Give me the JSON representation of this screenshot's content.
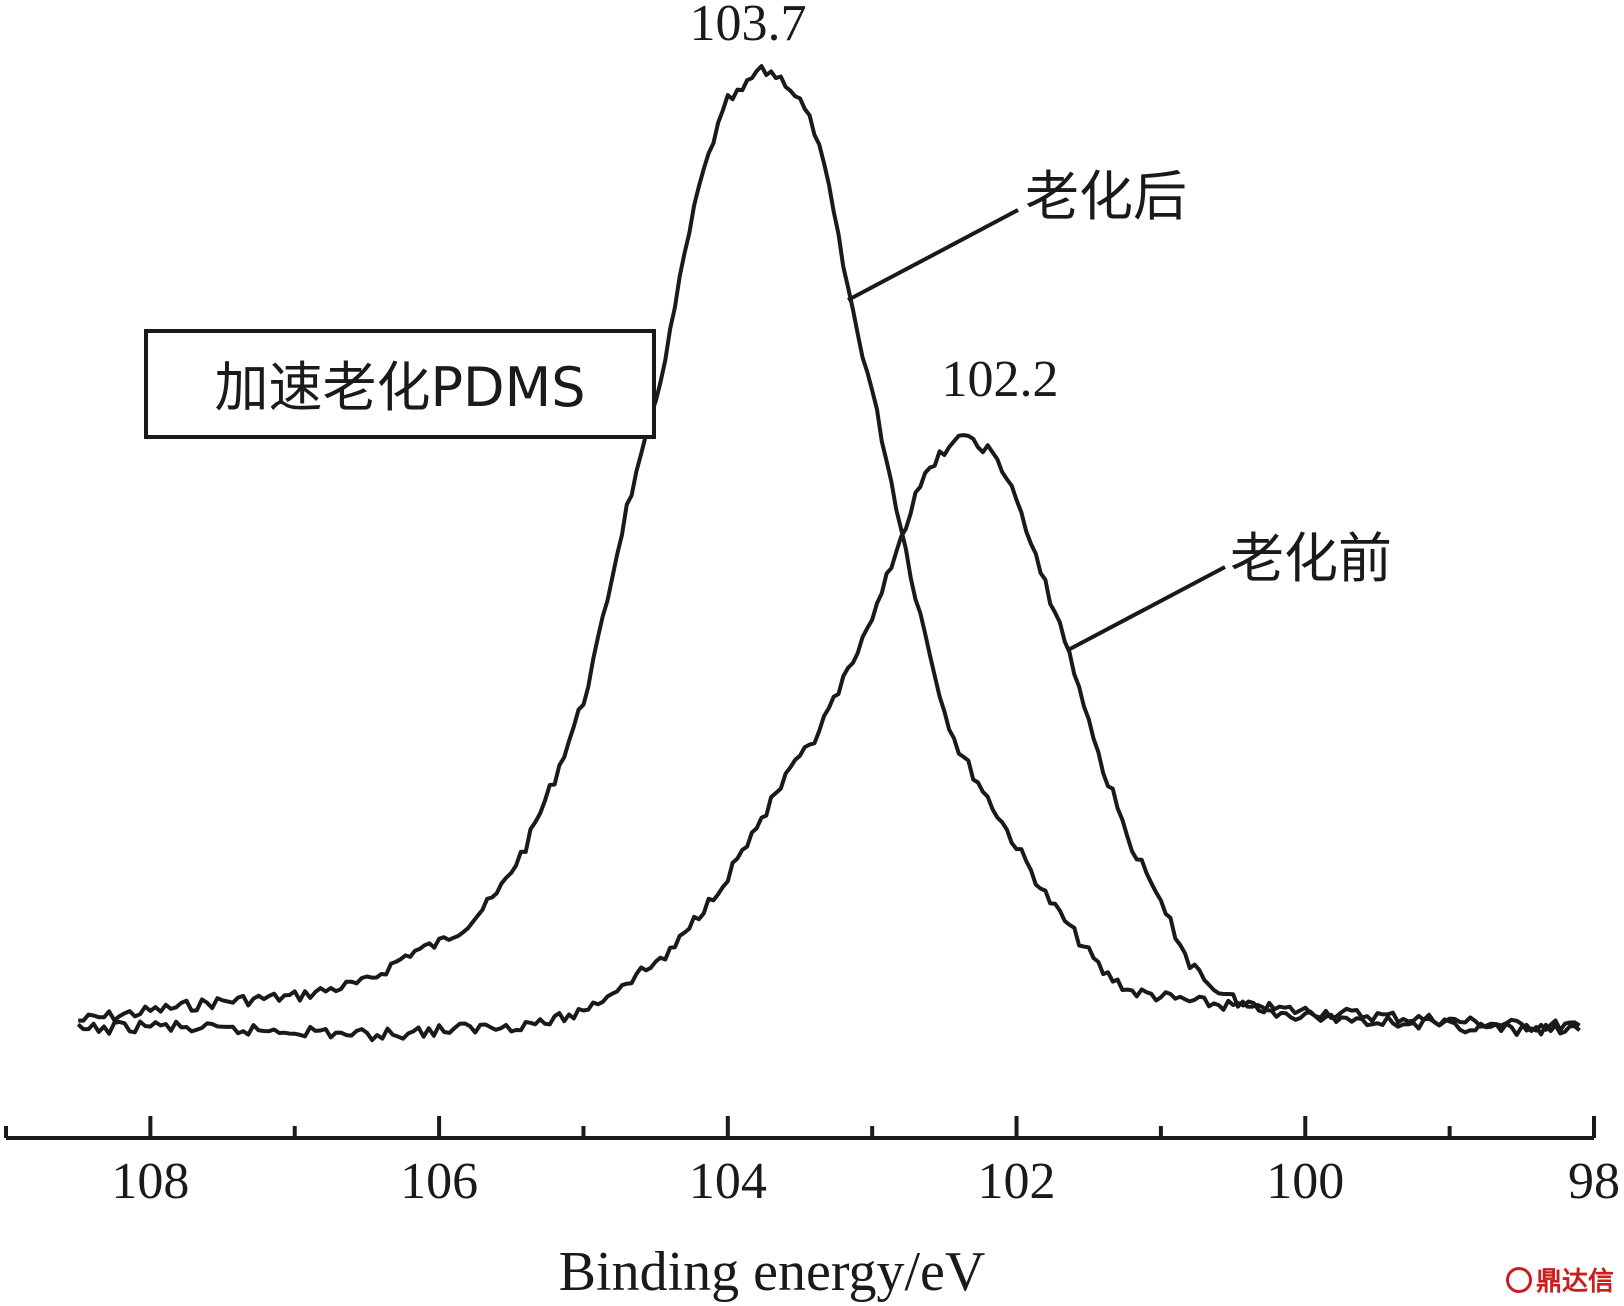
{
  "chart_data": {
    "type": "line",
    "title": "",
    "xlabel": "Binding energy/eV",
    "ylabel": "",
    "xlim": [
      109,
      98
    ],
    "x_reversed": true,
    "ylim": [
      0,
      1
    ],
    "x_ticks": [
      108,
      106,
      104,
      102,
      100,
      98
    ],
    "x_tick_labels": [
      "108",
      "106",
      "104",
      "102",
      "100",
      "98"
    ],
    "grid": false,
    "box_label": "加速老化PDMS",
    "series": [
      {
        "name": "老化后",
        "color": "#1a1a1a",
        "peak_label": "103.7",
        "points": [
          [
            108.5,
            0.02
          ],
          [
            108.0,
            0.03
          ],
          [
            107.5,
            0.04
          ],
          [
            107.0,
            0.045
          ],
          [
            106.5,
            0.06
          ],
          [
            106.2,
            0.09
          ],
          [
            106.0,
            0.1
          ],
          [
            105.8,
            0.12
          ],
          [
            105.6,
            0.15
          ],
          [
            105.4,
            0.2
          ],
          [
            105.2,
            0.27
          ],
          [
            105.0,
            0.35
          ],
          [
            104.9,
            0.41
          ],
          [
            104.8,
            0.48
          ],
          [
            104.7,
            0.55
          ],
          [
            104.6,
            0.6
          ],
          [
            104.5,
            0.66
          ],
          [
            104.4,
            0.73
          ],
          [
            104.3,
            0.81
          ],
          [
            104.2,
            0.88
          ],
          [
            104.1,
            0.93
          ],
          [
            104.0,
            0.97
          ],
          [
            103.9,
            0.98
          ],
          [
            103.8,
            1.0
          ],
          [
            103.7,
            1.0
          ],
          [
            103.6,
            0.99
          ],
          [
            103.5,
            0.97
          ],
          [
            103.4,
            0.94
          ],
          [
            103.3,
            0.88
          ],
          [
            103.2,
            0.8
          ],
          [
            103.1,
            0.73
          ],
          [
            103.0,
            0.67
          ],
          [
            102.9,
            0.6
          ],
          [
            102.8,
            0.53
          ],
          [
            102.7,
            0.46
          ],
          [
            102.6,
            0.4
          ],
          [
            102.5,
            0.34
          ],
          [
            102.4,
            0.3
          ],
          [
            102.2,
            0.25
          ],
          [
            102.0,
            0.2
          ],
          [
            101.8,
            0.15
          ],
          [
            101.6,
            0.11
          ],
          [
            101.4,
            0.07
          ],
          [
            101.2,
            0.05
          ],
          [
            101.0,
            0.045
          ],
          [
            100.8,
            0.04
          ],
          [
            100.5,
            0.035
          ],
          [
            100.0,
            0.03
          ],
          [
            99.5,
            0.025
          ],
          [
            99.0,
            0.02
          ],
          [
            98.5,
            0.015
          ],
          [
            98.1,
            0.015
          ]
        ]
      },
      {
        "name": "老化前",
        "color": "#1a1a1a",
        "peak_label": "102.2",
        "points": [
          [
            108.5,
            0.01
          ],
          [
            108.0,
            0.015
          ],
          [
            107.5,
            0.01
          ],
          [
            107.0,
            0.01
          ],
          [
            106.5,
            0.005
          ],
          [
            106.0,
            0.01
          ],
          [
            105.5,
            0.015
          ],
          [
            105.2,
            0.02
          ],
          [
            105.0,
            0.03
          ],
          [
            104.8,
            0.05
          ],
          [
            104.6,
            0.07
          ],
          [
            104.4,
            0.09
          ],
          [
            104.2,
            0.13
          ],
          [
            104.0,
            0.17
          ],
          [
            103.8,
            0.22
          ],
          [
            103.6,
            0.27
          ],
          [
            103.4,
            0.31
          ],
          [
            103.2,
            0.37
          ],
          [
            103.0,
            0.43
          ],
          [
            102.9,
            0.48
          ],
          [
            102.8,
            0.52
          ],
          [
            102.7,
            0.56
          ],
          [
            102.6,
            0.59
          ],
          [
            102.5,
            0.61
          ],
          [
            102.4,
            0.62
          ],
          [
            102.3,
            0.62
          ],
          [
            102.2,
            0.61
          ],
          [
            102.1,
            0.59
          ],
          [
            102.0,
            0.56
          ],
          [
            101.9,
            0.51
          ],
          [
            101.8,
            0.47
          ],
          [
            101.7,
            0.43
          ],
          [
            101.6,
            0.38
          ],
          [
            101.5,
            0.33
          ],
          [
            101.4,
            0.28
          ],
          [
            101.2,
            0.2
          ],
          [
            101.0,
            0.14
          ],
          [
            100.8,
            0.08
          ],
          [
            100.6,
            0.05
          ],
          [
            100.4,
            0.035
          ],
          [
            100.0,
            0.025
          ],
          [
            99.5,
            0.02
          ],
          [
            99.0,
            0.015
          ],
          [
            98.5,
            0.01
          ],
          [
            98.1,
            0.01
          ]
        ]
      }
    ]
  },
  "watermark": "鼎达信"
}
